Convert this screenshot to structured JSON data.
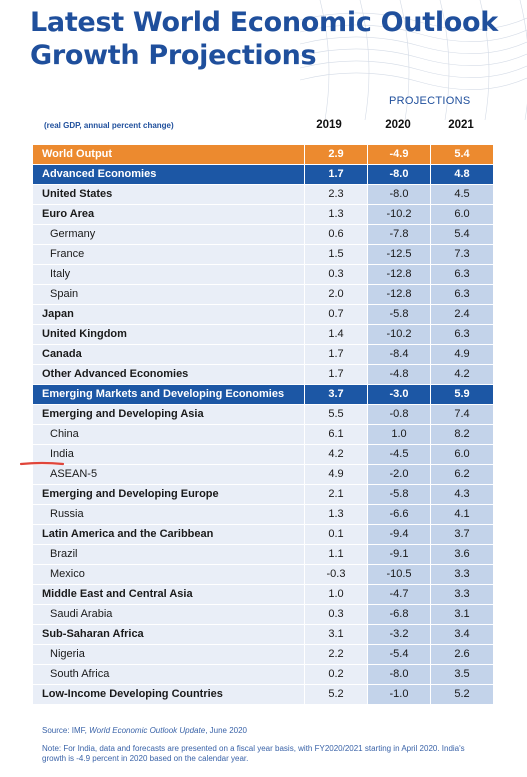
{
  "title_line1": "Latest World Economic Outlook",
  "title_line2": "Growth Projections",
  "projections_label": "PROJECTIONS",
  "unit_note": "(real GDP, annual percent change)",
  "years": [
    "2019",
    "2020",
    "2021"
  ],
  "rows": [
    {
      "name": "World Output",
      "v2019": "2.9",
      "v2020": "-4.9",
      "v2021": "5.4",
      "style": "orange"
    },
    {
      "name": "Advanced Economies",
      "v2019": "1.7",
      "v2020": "-8.0",
      "v2021": "4.8",
      "style": "blue"
    },
    {
      "name": "United States",
      "v2019": "2.3",
      "v2020": "-8.0",
      "v2021": "4.5",
      "style": "bold"
    },
    {
      "name": "Euro Area",
      "v2019": "1.3",
      "v2020": "-10.2",
      "v2021": "6.0",
      "style": "bold"
    },
    {
      "name": "Germany",
      "v2019": "0.6",
      "v2020": "-7.8",
      "v2021": "5.4",
      "style": "sub"
    },
    {
      "name": "France",
      "v2019": "1.5",
      "v2020": "-12.5",
      "v2021": "7.3",
      "style": "sub"
    },
    {
      "name": "Italy",
      "v2019": "0.3",
      "v2020": "-12.8",
      "v2021": "6.3",
      "style": "sub"
    },
    {
      "name": "Spain",
      "v2019": "2.0",
      "v2020": "-12.8",
      "v2021": "6.3",
      "style": "sub"
    },
    {
      "name": "Japan",
      "v2019": "0.7",
      "v2020": "-5.8",
      "v2021": "2.4",
      "style": "bold"
    },
    {
      "name": "United Kingdom",
      "v2019": "1.4",
      "v2020": "-10.2",
      "v2021": "6.3",
      "style": "bold"
    },
    {
      "name": "Canada",
      "v2019": "1.7",
      "v2020": "-8.4",
      "v2021": "4.9",
      "style": "bold"
    },
    {
      "name": "Other Advanced Economies",
      "v2019": "1.7",
      "v2020": "-4.8",
      "v2021": "4.2",
      "style": "bold"
    },
    {
      "name": "Emerging Markets and Developing Economies",
      "v2019": "3.7",
      "v2020": "-3.0",
      "v2021": "5.9",
      "style": "blue"
    },
    {
      "name": "Emerging and Developing Asia",
      "v2019": "5.5",
      "v2020": "-0.8",
      "v2021": "7.4",
      "style": "bold"
    },
    {
      "name": "China",
      "v2019": "6.1",
      "v2020": "1.0",
      "v2021": "8.2",
      "style": "sub"
    },
    {
      "name": "India",
      "v2019": "4.2",
      "v2020": "-4.5",
      "v2021": "6.0",
      "style": "sub"
    },
    {
      "name": "ASEAN-5",
      "v2019": "4.9",
      "v2020": "-2.0",
      "v2021": "6.2",
      "style": "sub"
    },
    {
      "name": "Emerging and Developing Europe",
      "v2019": "2.1",
      "v2020": "-5.8",
      "v2021": "4.3",
      "style": "bold"
    },
    {
      "name": "Russia",
      "v2019": "1.3",
      "v2020": "-6.6",
      "v2021": "4.1",
      "style": "sub"
    },
    {
      "name": "Latin America and the Caribbean",
      "v2019": "0.1",
      "v2020": "-9.4",
      "v2021": "3.7",
      "style": "bold"
    },
    {
      "name": "Brazil",
      "v2019": "1.1",
      "v2020": "-9.1",
      "v2021": "3.6",
      "style": "sub"
    },
    {
      "name": "Mexico",
      "v2019": "-0.3",
      "v2020": "-10.5",
      "v2021": "3.3",
      "style": "sub"
    },
    {
      "name": "Middle East and Central Asia",
      "v2019": "1.0",
      "v2020": "-4.7",
      "v2021": "3.3",
      "style": "bold"
    },
    {
      "name": "Saudi Arabia",
      "v2019": "0.3",
      "v2020": "-6.8",
      "v2021": "3.1",
      "style": "sub"
    },
    {
      "name": "Sub-Saharan Africa",
      "v2019": "3.1",
      "v2020": "-3.2",
      "v2021": "3.4",
      "style": "bold"
    },
    {
      "name": "Nigeria",
      "v2019": "2.2",
      "v2020": "-5.4",
      "v2021": "2.6",
      "style": "sub"
    },
    {
      "name": "South Africa",
      "v2019": "0.2",
      "v2020": "-8.0",
      "v2021": "3.5",
      "style": "sub"
    },
    {
      "name": "Low-Income Developing Countries",
      "v2019": "5.2",
      "v2020": "-1.0",
      "v2021": "5.2",
      "style": "bold"
    }
  ],
  "source_prefix": "Source: IMF, ",
  "source_title": "World Economic Outlook Update",
  "source_suffix": ", June 2020",
  "note": "Note: For India, data and forecasts are presented on a fiscal year basis, with FY2020/2021 starting in April 2020. India's growth is -4.9 percent in 2020 based on the calendar year.",
  "colors": {
    "title": "#1f4f9c",
    "orange_band": "#ec8a2f",
    "blue_band": "#1c57a5",
    "light_cell": "#e9eef7",
    "proj_cell": "#c3d3ea",
    "underline": "#e0453a"
  }
}
